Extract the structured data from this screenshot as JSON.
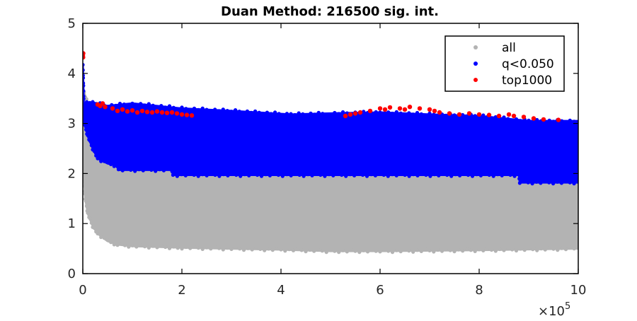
{
  "chart_data": {
    "type": "scatter",
    "title": "Duan Method: 216500 sig. int.",
    "xlabel": "",
    "ylabel": "",
    "xlim": [
      0,
      1000000
    ],
    "ylim": [
      0,
      5
    ],
    "x_tick_values": [
      0,
      200000,
      400000,
      600000,
      800000,
      1000000
    ],
    "x_tick_labels": [
      "0",
      "2",
      "4",
      "6",
      "8",
      "10"
    ],
    "x_multiplier_base": "×10",
    "x_multiplier_exponent": "5",
    "y_tick_values": [
      0,
      1,
      2,
      3,
      4,
      5
    ],
    "y_tick_labels": [
      "0",
      "1",
      "2",
      "3",
      "4",
      "5"
    ],
    "grid": false,
    "legend_position": "top-right",
    "series": [
      {
        "name": "all",
        "color": "#b3b3b3",
        "band_lower": [
          [
            0,
            2.25
          ],
          [
            5000,
            1.5
          ],
          [
            10000,
            1.2
          ],
          [
            20000,
            0.95
          ],
          [
            30000,
            0.8
          ],
          [
            50000,
            0.65
          ],
          [
            70000,
            0.58
          ],
          [
            100000,
            0.55
          ],
          [
            200000,
            0.52
          ],
          [
            400000,
            0.48
          ],
          [
            500000,
            0.45
          ],
          [
            600000,
            0.45
          ],
          [
            800000,
            0.47
          ],
          [
            1000000,
            0.5
          ]
        ],
        "band_upper": [
          [
            0,
            3.7
          ],
          [
            20000,
            3.1
          ],
          [
            40000,
            3.0
          ],
          [
            100000,
            2.9
          ],
          [
            200000,
            2.85
          ],
          [
            400000,
            2.85
          ],
          [
            600000,
            2.85
          ],
          [
            800000,
            2.85
          ],
          [
            1000000,
            2.85
          ]
        ]
      },
      {
        "name": "q<0.050",
        "color": "#0000ff",
        "band_lower": [
          [
            0,
            3.1
          ],
          [
            3000,
            3.0
          ],
          [
            10000,
            2.75
          ],
          [
            20000,
            2.5
          ],
          [
            30000,
            2.3
          ],
          [
            50000,
            2.2
          ],
          [
            70000,
            2.15
          ],
          [
            72000,
            2.07
          ],
          [
            180000,
            2.07
          ],
          [
            182000,
            1.97
          ],
          [
            880000,
            1.97
          ],
          [
            882000,
            1.82
          ],
          [
            1000000,
            1.82
          ]
        ],
        "band_upper": [
          [
            0,
            4.15
          ],
          [
            2000,
            3.4
          ],
          [
            20000,
            3.42
          ],
          [
            50000,
            3.35
          ],
          [
            100000,
            3.4
          ],
          [
            200000,
            3.3
          ],
          [
            300000,
            3.25
          ],
          [
            420000,
            3.18
          ],
          [
            500000,
            3.2
          ],
          [
            600000,
            3.22
          ],
          [
            700000,
            3.18
          ],
          [
            800000,
            3.15
          ],
          [
            900000,
            3.05
          ],
          [
            1000000,
            3.05
          ]
        ]
      },
      {
        "name": "top1000",
        "color": "#ff0000",
        "points": [
          [
            0,
            4.35
          ],
          [
            0,
            4.38
          ],
          [
            500,
            4.32
          ],
          [
            700,
            4.4
          ],
          [
            30000,
            3.38
          ],
          [
            35000,
            3.35
          ],
          [
            40000,
            3.4
          ],
          [
            45000,
            3.33
          ],
          [
            60000,
            3.3
          ],
          [
            70000,
            3.25
          ],
          [
            80000,
            3.28
          ],
          [
            90000,
            3.24
          ],
          [
            100000,
            3.26
          ],
          [
            110000,
            3.22
          ],
          [
            120000,
            3.25
          ],
          [
            130000,
            3.23
          ],
          [
            140000,
            3.22
          ],
          [
            150000,
            3.24
          ],
          [
            160000,
            3.22
          ],
          [
            170000,
            3.21
          ],
          [
            180000,
            3.22
          ],
          [
            190000,
            3.2
          ],
          [
            200000,
            3.18
          ],
          [
            210000,
            3.17
          ],
          [
            220000,
            3.16
          ],
          [
            530000,
            3.15
          ],
          [
            540000,
            3.18
          ],
          [
            550000,
            3.2
          ],
          [
            560000,
            3.22
          ],
          [
            580000,
            3.25
          ],
          [
            600000,
            3.3
          ],
          [
            610000,
            3.28
          ],
          [
            620000,
            3.32
          ],
          [
            640000,
            3.3
          ],
          [
            650000,
            3.28
          ],
          [
            660000,
            3.33
          ],
          [
            680000,
            3.3
          ],
          [
            700000,
            3.28
          ],
          [
            710000,
            3.25
          ],
          [
            720000,
            3.22
          ],
          [
            740000,
            3.2
          ],
          [
            760000,
            3.18
          ],
          [
            780000,
            3.2
          ],
          [
            800000,
            3.18
          ],
          [
            820000,
            3.17
          ],
          [
            840000,
            3.15
          ],
          [
            860000,
            3.18
          ],
          [
            870000,
            3.15
          ],
          [
            890000,
            3.13
          ],
          [
            910000,
            3.1
          ],
          [
            930000,
            3.08
          ],
          [
            960000,
            3.07
          ]
        ]
      }
    ],
    "legend": [
      {
        "label": "all",
        "color": "#b3b3b3"
      },
      {
        "label": "q<0.050",
        "color": "#0000ff"
      },
      {
        "label": "top1000",
        "color": "#ff0000"
      }
    ]
  }
}
